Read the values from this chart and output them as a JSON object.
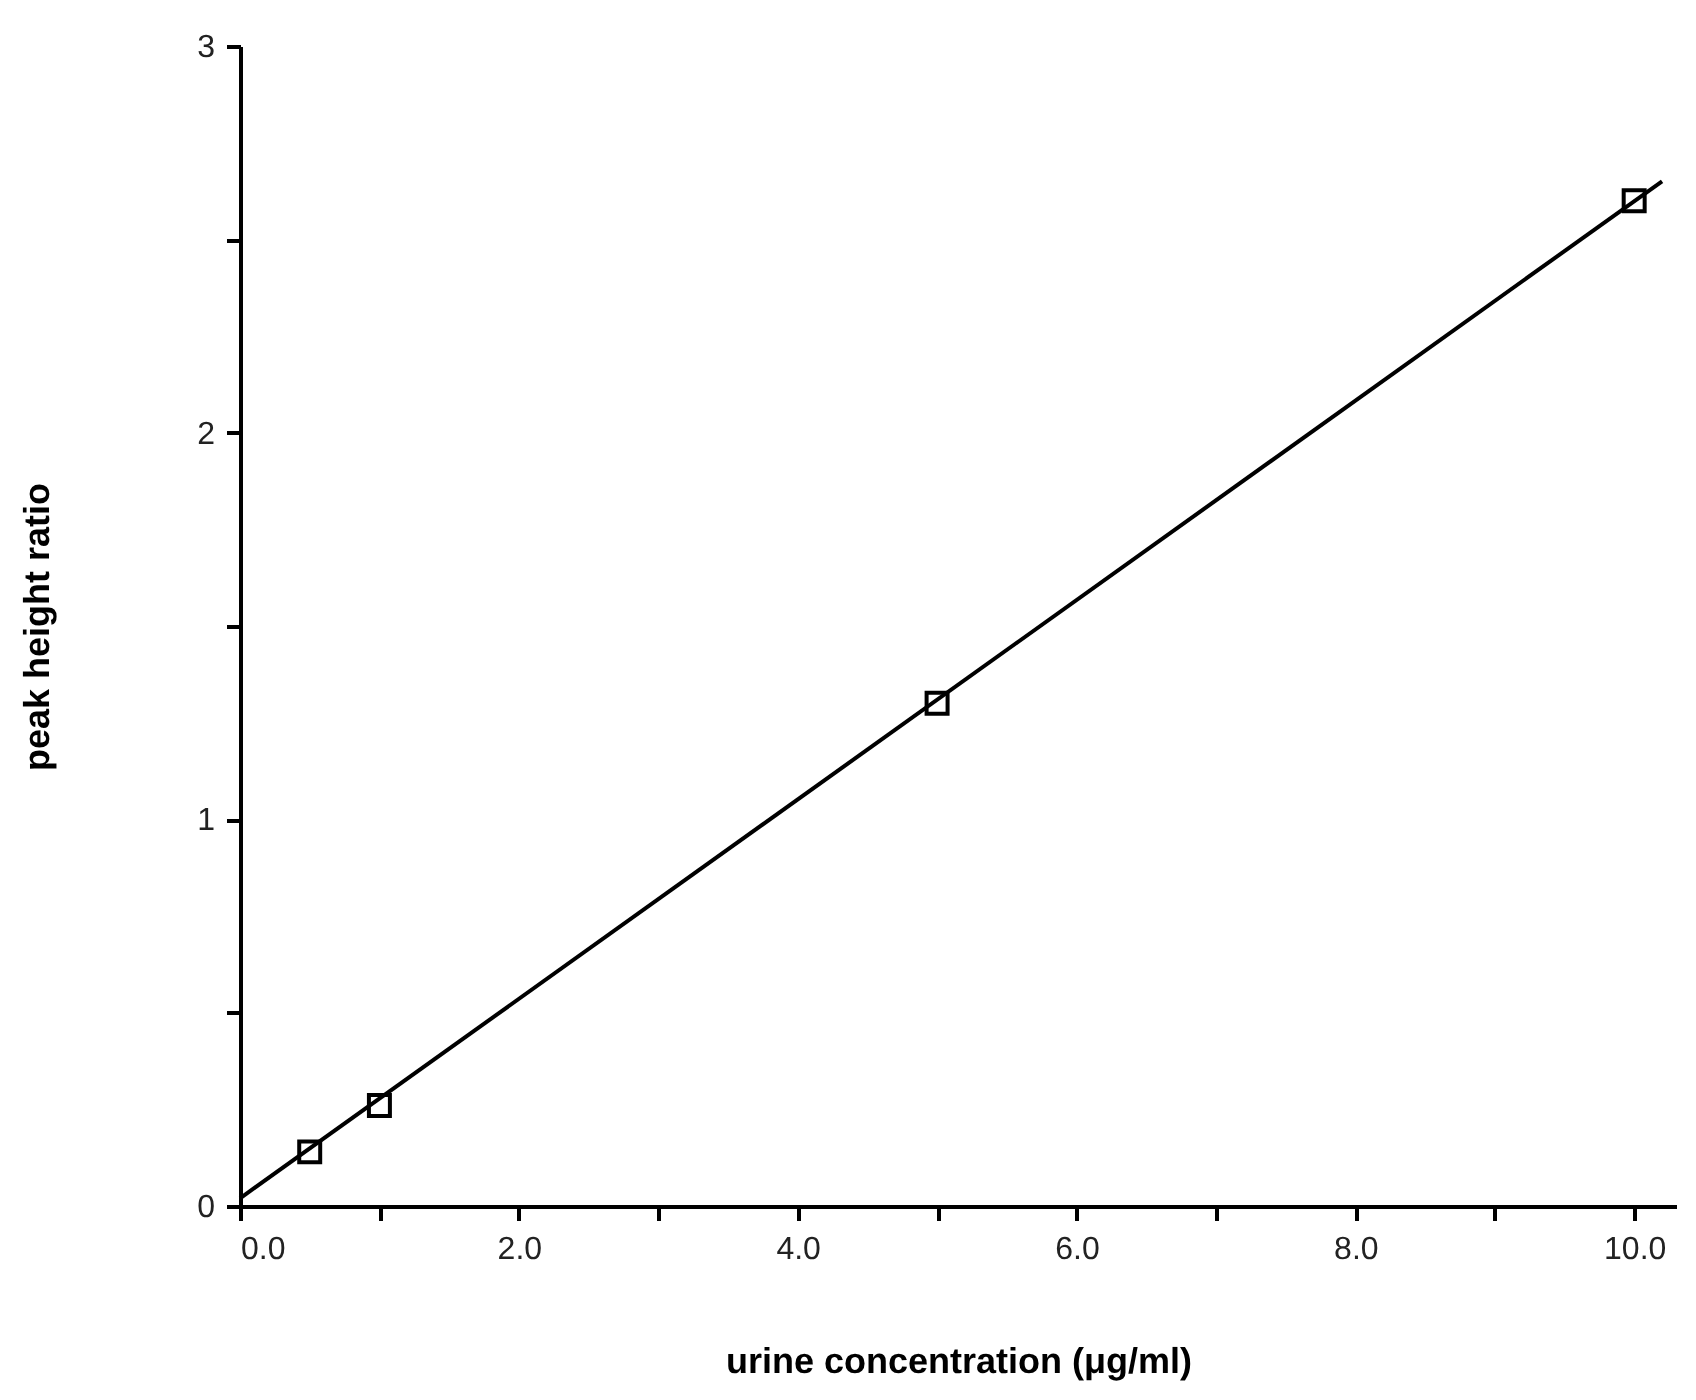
{
  "chart_data": {
    "type": "scatter",
    "xlabel": "urine concentration (μg/ml)",
    "ylabel": "peak  height  ratio",
    "xlim": [
      0,
      10.3
    ],
    "ylim": [
      0,
      3
    ],
    "xticks": [
      {
        "value": 0,
        "label": "0.0"
      },
      {
        "value": 1,
        "label": null
      },
      {
        "value": 2,
        "label": "2.0"
      },
      {
        "value": 3,
        "label": null
      },
      {
        "value": 4,
        "label": "4.0"
      },
      {
        "value": 5,
        "label": null
      },
      {
        "value": 6,
        "label": "6.0"
      },
      {
        "value": 7,
        "label": null
      },
      {
        "value": 8,
        "label": "8.0"
      },
      {
        "value": 9,
        "label": null
      },
      {
        "value": 10,
        "label": "10.0"
      }
    ],
    "yticks": [
      0,
      {
        "value": 0.5,
        "label": null
      },
      1,
      {
        "value": 1.5,
        "label": null
      },
      2,
      {
        "value": 2.5,
        "label": null
      },
      3
    ],
    "grid": false,
    "series": [
      {
        "color": "#000000",
        "marker": "square",
        "x": [
          0.5,
          1,
          5,
          10
        ],
        "values": [
          0.14,
          0.26,
          1.3,
          2.6
        ]
      },
      {
        "type": "line",
        "color": "#000000",
        "marker": "none",
        "line_style": "solid",
        "x": [
          0,
          10.2
        ],
        "values": [
          0.02,
          2.65
        ]
      }
    ]
  }
}
